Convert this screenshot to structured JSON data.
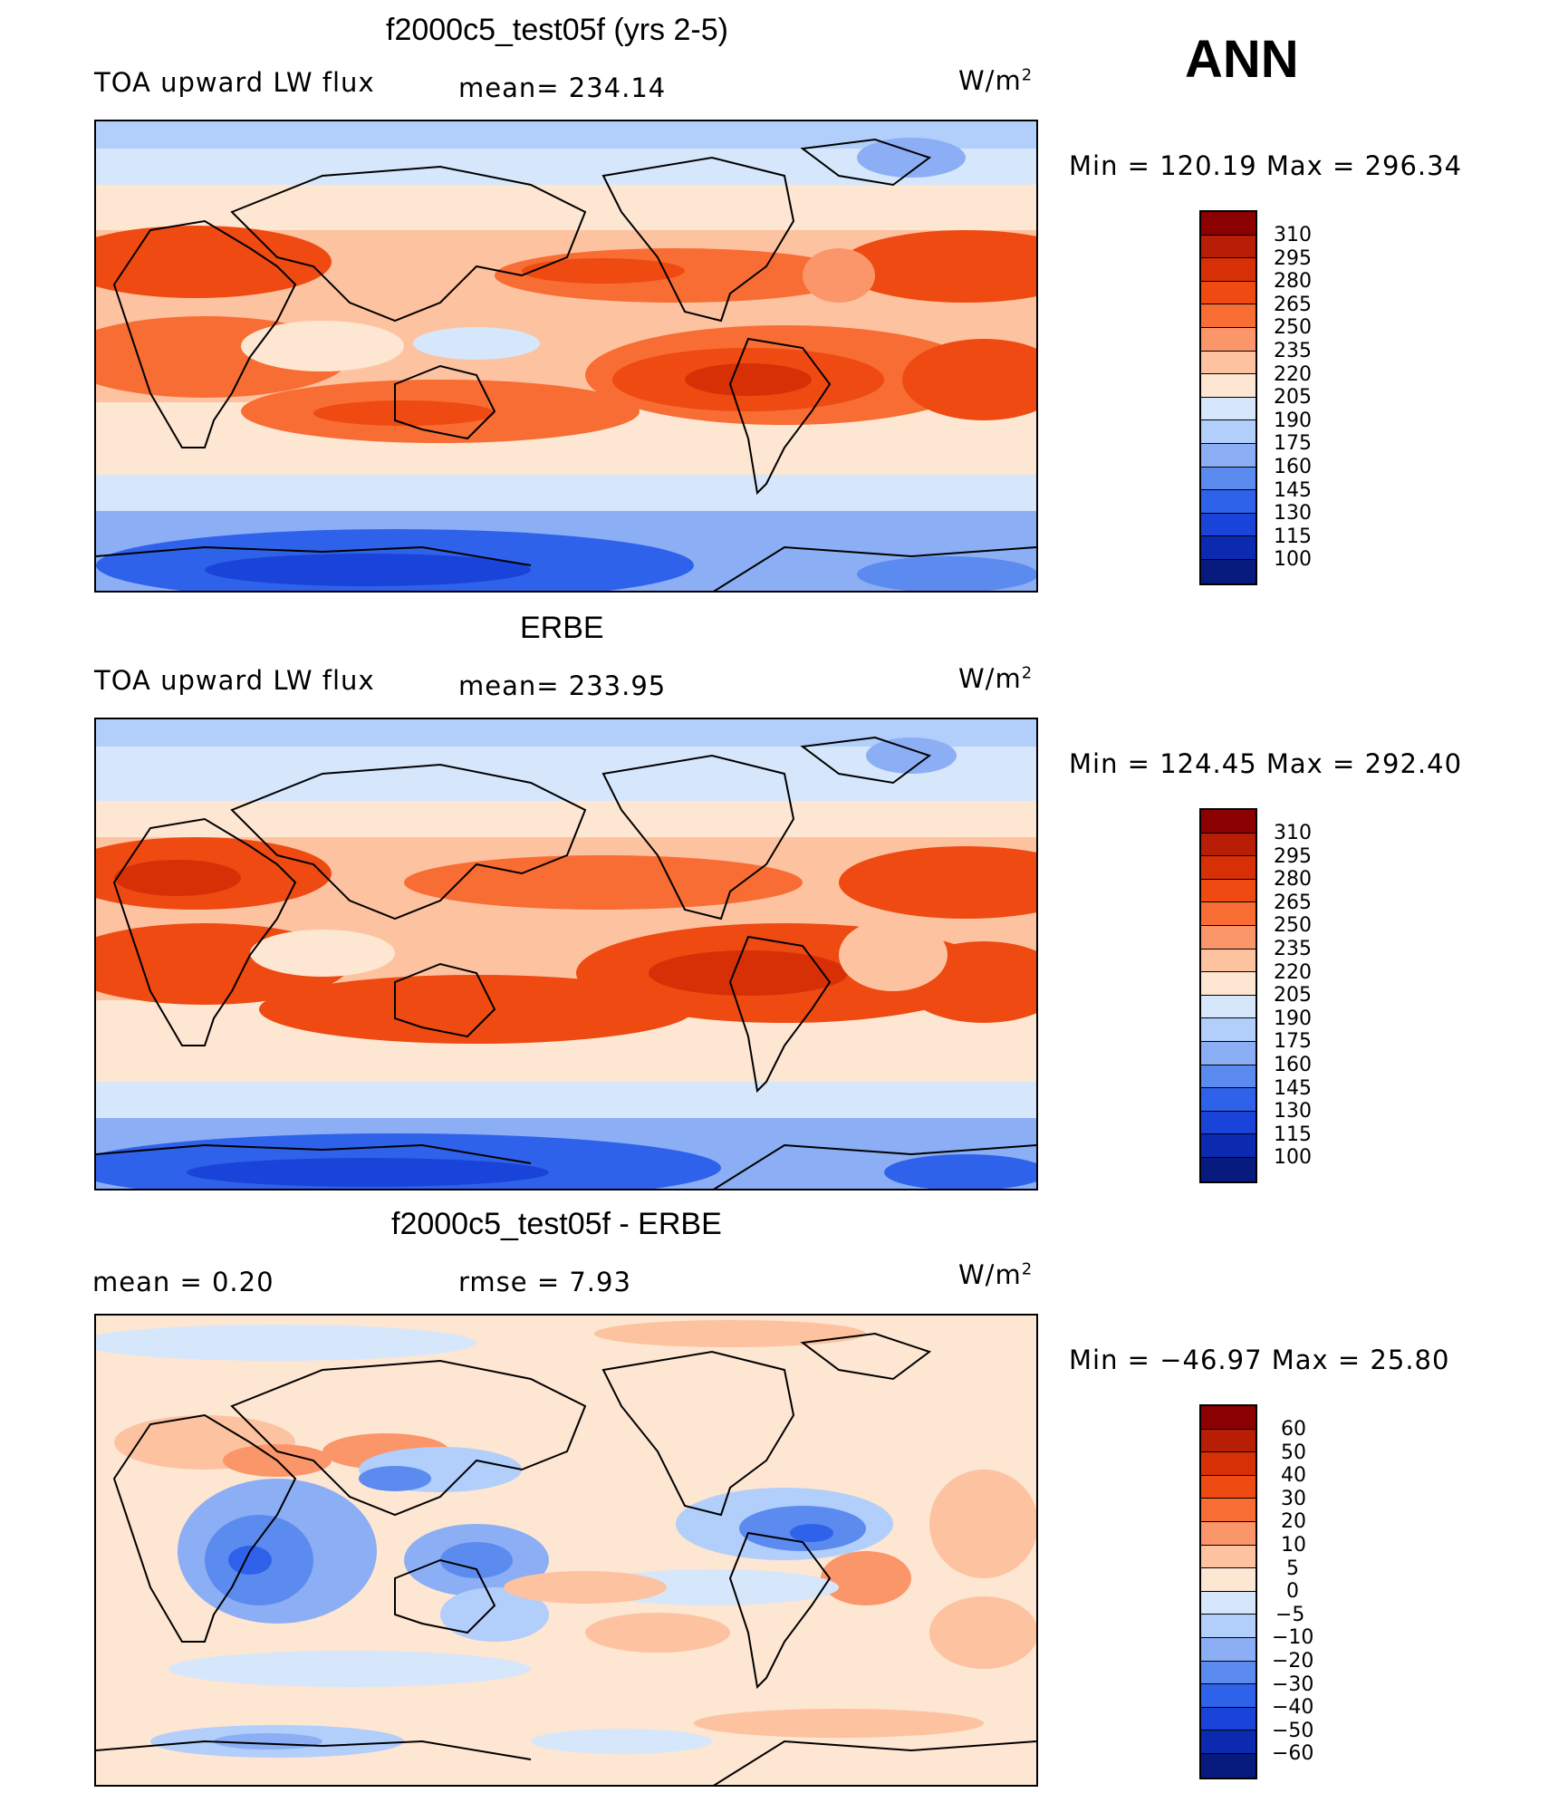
{
  "season": "ANN",
  "panels": [
    {
      "title": "f2000c5_test05f (yrs 2-5)",
      "left_label": "TOA upward LW flux",
      "center_label": "mean=  234.14",
      "units": "W/m",
      "units_sup": "2",
      "range_text": "Min  =  120.19  Max  =  296.34",
      "levels": [
        "310",
        "295",
        "280",
        "265",
        "250",
        "235",
        "220",
        "205",
        "190",
        "175",
        "160",
        "145",
        "130",
        "115",
        "100"
      ],
      "colors": [
        "#8b0000",
        "#b81e05",
        "#d83006",
        "#ee4a12",
        "#f86d33",
        "#fb956a",
        "#fdc2a0",
        "#fde6d2",
        "#d6e7fb",
        "#b2cefa",
        "#8caef5",
        "#5c8bef",
        "#2f62ea",
        "#1a44d9",
        "#0b2ab0",
        "#071a7e"
      ]
    },
    {
      "title": "ERBE",
      "left_label": "TOA upward LW flux",
      "center_label": "mean=  233.95",
      "units": "W/m",
      "units_sup": "2",
      "range_text": "Min  =  124.45  Max  =  292.40",
      "levels": [
        "310",
        "295",
        "280",
        "265",
        "250",
        "235",
        "220",
        "205",
        "190",
        "175",
        "160",
        "145",
        "130",
        "115",
        "100"
      ],
      "colors": [
        "#8b0000",
        "#b81e05",
        "#d83006",
        "#ee4a12",
        "#f86d33",
        "#fb956a",
        "#fdc2a0",
        "#fde6d2",
        "#d6e7fb",
        "#b2cefa",
        "#8caef5",
        "#5c8bef",
        "#2f62ea",
        "#1a44d9",
        "#0b2ab0",
        "#071a7e"
      ]
    },
    {
      "title": "f2000c5_test05f - ERBE",
      "left_label": "mean  =      0.20",
      "center_label": "rmse  =      7.93",
      "units": "W/m",
      "units_sup": "2",
      "range_text": "Min  =  −46.97  Max  =    25.80",
      "levels": [
        "60",
        "50",
        "40",
        "30",
        "20",
        "10",
        "5",
        "0",
        "−5",
        "−10",
        "−20",
        "−30",
        "−40",
        "−50",
        "−60"
      ],
      "colors": [
        "#8b0000",
        "#b81e05",
        "#d83006",
        "#ee4a12",
        "#f86d33",
        "#fb956a",
        "#fdc2a0",
        "#fde6d2",
        "#d6e7fb",
        "#b2cefa",
        "#8caef5",
        "#5c8bef",
        "#2f62ea",
        "#1a44d9",
        "#0b2ab0",
        "#071a7e"
      ]
    }
  ]
}
